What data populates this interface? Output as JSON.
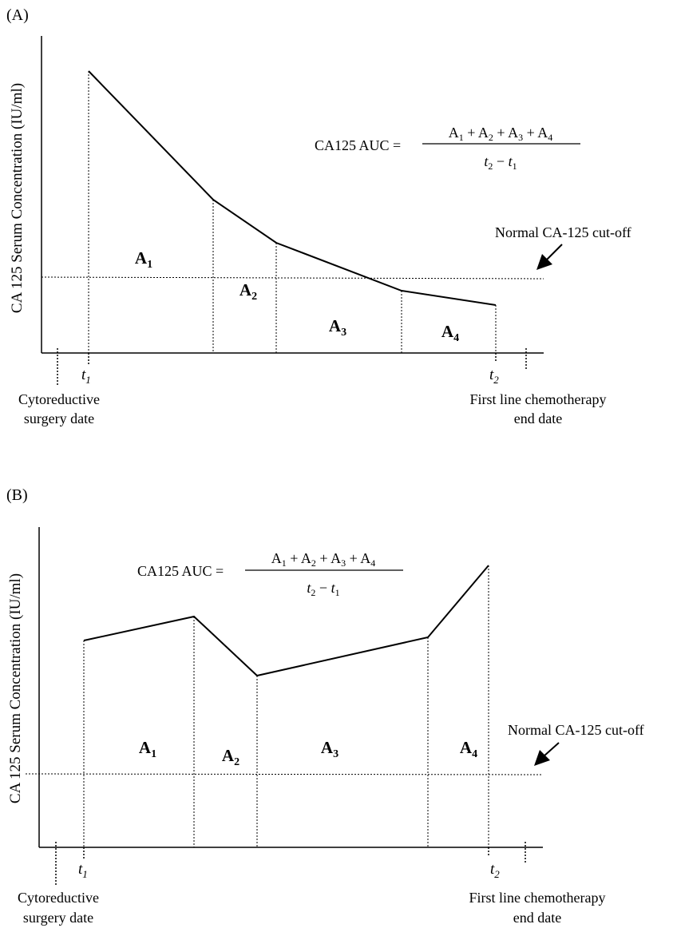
{
  "figure": {
    "panel_a": {
      "tag": "(A)",
      "ylabel": "CA 125 Serum Concentration (IU/ml)",
      "cutoff_label": "Normal CA-125 cut-off",
      "t1": "t",
      "t1_sub": "1",
      "t2": "t",
      "t2_sub": "2",
      "start_label": [
        "Cytoreductive",
        "surgery date"
      ],
      "end_label": [
        "First line chemotherapy",
        "end date"
      ],
      "areas": [
        "A",
        "A",
        "A",
        "A"
      ],
      "area_subs": [
        "1",
        "2",
        "3",
        "4"
      ],
      "formula": {
        "lhs": "CA125 AUC =",
        "numerator_parts": [
          "A",
          "1",
          "+",
          "A",
          "2",
          "+",
          "A",
          "3",
          "+",
          "A",
          "4"
        ],
        "denominator_parts": [
          "t",
          "2",
          "−",
          "t",
          "1"
        ]
      }
    },
    "panel_b": {
      "tag": "(B)",
      "ylabel": "CA 125 Serum Concentration (IU/ml)",
      "cutoff_label": "Normal CA-125 cut-off",
      "t1": "t",
      "t1_sub": "1",
      "t2": "t",
      "t2_sub": "2",
      "start_label": [
        "Cytoreductive",
        "surgery date"
      ],
      "end_label": [
        "First line chemotherapy",
        "end date"
      ],
      "areas": [
        "A",
        "A",
        "A",
        "A"
      ],
      "area_subs": [
        "1",
        "2",
        "3",
        "4"
      ],
      "formula": {
        "lhs": "CA125 AUC =",
        "numerator_parts": [
          "A",
          "1",
          "+",
          "A",
          "2",
          "+",
          "A",
          "3",
          "+",
          "A",
          "4"
        ],
        "denominator_parts": [
          "t",
          "2",
          "−",
          "t",
          "1"
        ]
      }
    }
  }
}
